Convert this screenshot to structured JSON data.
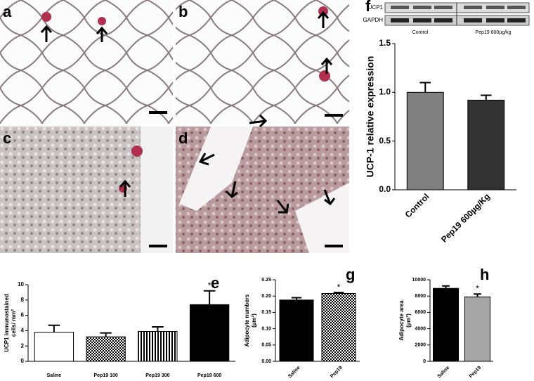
{
  "micrographs": [
    {
      "label": "a"
    },
    {
      "label": "b"
    },
    {
      "label": "c"
    },
    {
      "label": "d"
    }
  ],
  "blot": {
    "panel_label": "f",
    "rows": [
      "UCP1",
      "GAPDH"
    ],
    "lanes": [
      "Control",
      "Pep19 600µg/kg"
    ]
  },
  "chart_data": [
    {
      "type": "bar",
      "y_label": "UCP-1 relative expression",
      "categories": [
        "Control",
        "Pep19 600µg/Kg"
      ],
      "values": [
        1.0,
        0.92
      ],
      "errors": [
        0.1,
        0.05
      ],
      "colors": [
        "#808080",
        "#333333"
      ],
      "patterns": [
        "solid",
        "solid"
      ],
      "ylim": [
        0,
        1.5
      ],
      "yticks": [
        {
          "value": 0,
          "label": "0.0"
        },
        {
          "value": 0.5,
          "label": "0.5"
        },
        {
          "value": 1,
          "label": "1.0"
        },
        {
          "value": 1.5,
          "label": "1.5"
        }
      ]
    },
    {
      "type": "bar",
      "panel_label": "e",
      "y_label": [
        "UCP1 immunostained",
        "cells/ mm²"
      ],
      "categories": [
        "Saline",
        "Pep19 100",
        "Pep19 300",
        "Pep19 600"
      ],
      "values": [
        3.8,
        3.2,
        3.9,
        7.4
      ],
      "errors": [
        0.9,
        0.5,
        0.6,
        1.8
      ],
      "colors": [
        "#ffffff",
        "#000000",
        "#000000",
        "#000000"
      ],
      "patterns": [
        "solid",
        "checker",
        "stripes",
        "solid"
      ],
      "significance": [
        null,
        null,
        null,
        "*"
      ],
      "ylim": [
        0,
        10
      ],
      "yticks": [
        0,
        2,
        4,
        6,
        8,
        10
      ]
    },
    {
      "type": "bar",
      "panel_label": "g",
      "y_label": [
        "Adipocyte numbers",
        "(µm²)"
      ],
      "categories": [
        "Saline",
        "Pep19"
      ],
      "values": [
        0.188,
        0.208
      ],
      "errors": [
        0.007,
        0.003
      ],
      "colors": [
        "#000000",
        "#000000"
      ],
      "patterns": [
        "solid",
        "checker"
      ],
      "significance": [
        null,
        "*"
      ],
      "ylim": [
        0,
        0.25
      ],
      "yticks": [
        {
          "value": 0,
          "label": "0.00"
        },
        {
          "value": 0.05,
          "label": "0.05"
        },
        {
          "value": 0.1,
          "label": "0.10"
        },
        {
          "value": 0.15,
          "label": "0.15"
        },
        {
          "value": 0.2,
          "label": "0.20"
        },
        {
          "value": 0.25,
          "label": "0.25"
        }
      ]
    },
    {
      "type": "bar",
      "panel_label": "h",
      "y_label": [
        "Adipocyte area",
        "(µm²)"
      ],
      "categories": [
        "Saline",
        "Pep19"
      ],
      "values": [
        8950,
        7900
      ],
      "errors": [
        300,
        350
      ],
      "colors": [
        "#000000",
        "#a6a6a6"
      ],
      "patterns": [
        "solid",
        "solid"
      ],
      "significance": [
        null,
        "*"
      ],
      "ylim": [
        0,
        10000
      ],
      "yticks": [
        0,
        2000,
        4000,
        6000,
        8000,
        10000
      ]
    }
  ]
}
